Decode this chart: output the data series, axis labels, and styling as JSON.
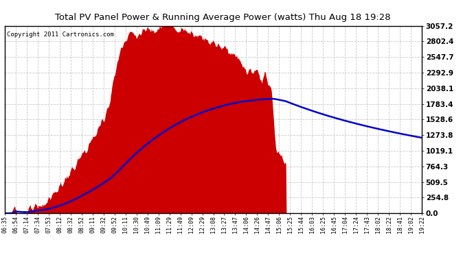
{
  "title": "Total PV Panel Power & Running Average Power (watts) Thu Aug 18 19:28",
  "copyright": "Copyright 2011 Cartronics.com",
  "bg_color": "#ffffff",
  "plot_bg_color": "#ffffff",
  "grid_color": "#c8c8c8",
  "fill_color": "#cc0000",
  "line_color": "#0000cc",
  "ytick_labels": [
    "0.0",
    "254.8",
    "509.5",
    "764.3",
    "1019.1",
    "1273.8",
    "1528.6",
    "1783.4",
    "2038.1",
    "2292.9",
    "2547.7",
    "2802.4",
    "3057.2"
  ],
  "ytick_vals": [
    0.0,
    254.8,
    509.5,
    764.3,
    1019.1,
    1273.8,
    1528.6,
    1783.4,
    2038.1,
    2292.9,
    2547.7,
    2802.4,
    3057.2
  ],
  "ymax": 3057.2,
  "xtick_labels": [
    "06:35",
    "06:54",
    "07:14",
    "07:34",
    "07:53",
    "08:12",
    "08:32",
    "08:52",
    "09:11",
    "09:32",
    "09:52",
    "10:11",
    "10:30",
    "10:49",
    "11:09",
    "11:29",
    "11:49",
    "12:09",
    "12:29",
    "13:08",
    "13:27",
    "13:47",
    "14:06",
    "14:26",
    "14:47",
    "15:06",
    "15:25",
    "15:44",
    "16:03",
    "16:25",
    "16:45",
    "17:04",
    "17:24",
    "17:43",
    "18:02",
    "18:22",
    "18:41",
    "19:02",
    "19:22"
  ],
  "n_points": 780
}
